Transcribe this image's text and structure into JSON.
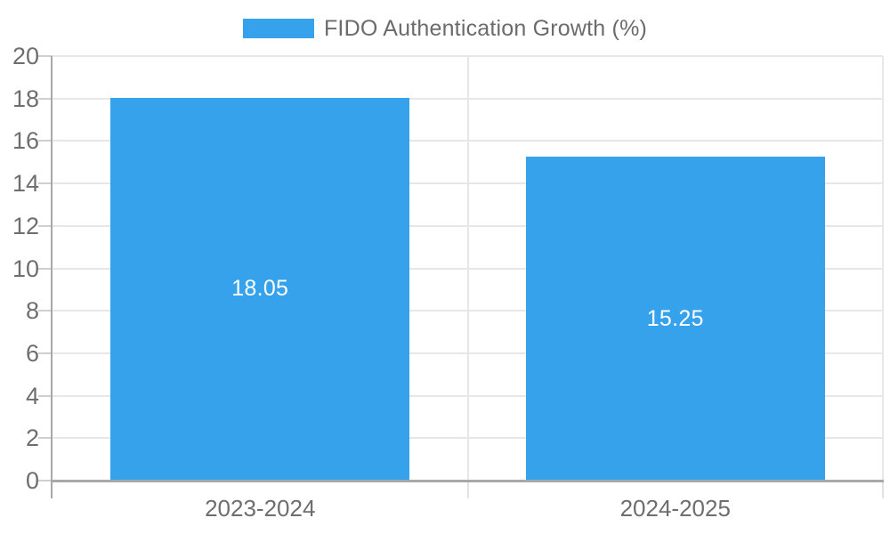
{
  "legend": {
    "label": "FIDO Authentication Growth (%)"
  },
  "colors": {
    "bar": "#36A2EB",
    "axis_text": "#6e6e6e",
    "legend_text": "#6b6b6b",
    "gridline": "#e7e7e7",
    "axis_line": "#a8a8a8",
    "value_label": "#ffffff",
    "background": "#ffffff"
  },
  "chart_data": {
    "type": "bar",
    "title": "FIDO Authentication Growth (%)",
    "categories": [
      "2023-2024",
      "2024-2025"
    ],
    "values": [
      18.05,
      15.25
    ],
    "value_labels": [
      "18.05",
      "15.25"
    ],
    "xlabel": "",
    "ylabel": "",
    "ylim": [
      0,
      20
    ],
    "yticks": [
      0,
      2,
      4,
      6,
      8,
      10,
      12,
      14,
      16,
      18,
      20
    ],
    "grid": true,
    "legend_position": "top",
    "value_label_position": "center-of-bar",
    "bar_width_fraction": 0.72
  }
}
